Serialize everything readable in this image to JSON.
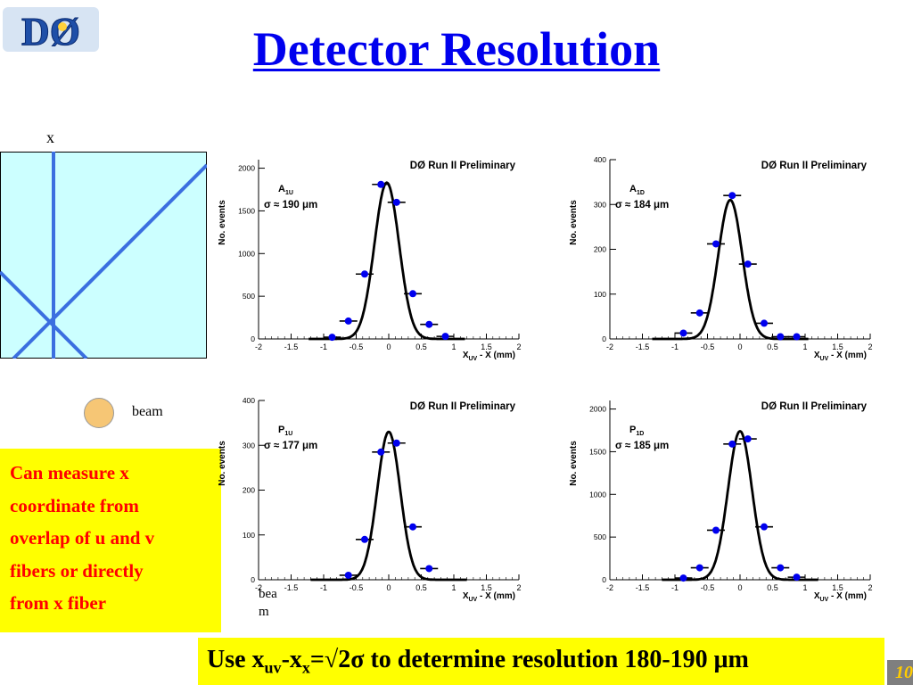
{
  "logo": {
    "text": "DØ"
  },
  "title": "Detector Resolution",
  "diagram": {
    "axis_label": "x",
    "beam_label": "beam"
  },
  "note": {
    "lines": [
      "Can  measure x",
      "coordinate from",
      "overlap of u and v",
      "fibers or directly",
      "from x fiber"
    ]
  },
  "fragment": {
    "lines": [
      "bea",
      "m"
    ]
  },
  "bottom": {
    "pre": "Use x",
    "sub1": "uv",
    "mid": "-x",
    "sub2": "x",
    "post": "=√2σ to determine resolution 180-190 μm"
  },
  "slide_number": "10",
  "chart_data": [
    {
      "type": "scatter",
      "title": "DØ Run II Preliminary",
      "label": "A",
      "label_sub": "1U",
      "sigma": "σ ≈ 190 μm",
      "xlabel": "X",
      "xlabel_sub": "UV",
      "xlabel_rest": " - X (mm)",
      "ylabel": "No. events",
      "xlim": [
        -2,
        2
      ],
      "ylim": [
        0,
        2100
      ],
      "xticks": [
        "-2",
        "-1.5",
        "-1",
        "-0.5",
        "0",
        "0.5",
        "1",
        "1.5",
        "2"
      ],
      "yticks": [
        0,
        500,
        1000,
        1500,
        2000
      ],
      "points": [
        [
          -0.87,
          20
        ],
        [
          -0.62,
          210
        ],
        [
          -0.37,
          760
        ],
        [
          -0.12,
          1810
        ],
        [
          0.12,
          1600
        ],
        [
          0.37,
          530
        ],
        [
          0.62,
          170
        ],
        [
          0.87,
          30
        ]
      ],
      "fit": {
        "amplitude": 1830,
        "mean": -0.03,
        "sigma": 0.19
      }
    },
    {
      "type": "scatter",
      "title": "DØ Run II Preliminary",
      "label": "A",
      "label_sub": "1D",
      "sigma": "σ ≈ 184 μm",
      "xlabel": "X",
      "xlabel_sub": "UV",
      "xlabel_rest": " - X (mm)",
      "ylabel": "No. events",
      "xlim": [
        -2,
        2
      ],
      "ylim": [
        0,
        400
      ],
      "xticks": [
        "-2",
        "-1.5",
        "-1",
        "-0.5",
        "0",
        "0.5",
        "1",
        "1.5",
        "2"
      ],
      "yticks": [
        0,
        100,
        200,
        300,
        400
      ],
      "points": [
        [
          -0.87,
          13
        ],
        [
          -0.62,
          58
        ],
        [
          -0.37,
          212
        ],
        [
          -0.12,
          320
        ],
        [
          0.12,
          167
        ],
        [
          0.37,
          35
        ],
        [
          0.62,
          5
        ],
        [
          0.87,
          5
        ]
      ],
      "fit": {
        "amplitude": 310,
        "mean": -0.15,
        "sigma": 0.184
      }
    },
    {
      "type": "scatter",
      "title": "DØ Run II Preliminary",
      "label": "P",
      "label_sub": "1U",
      "sigma": "σ ≈ 177 μm",
      "xlabel": "X",
      "xlabel_sub": "UV",
      "xlabel_rest": " - X (mm)",
      "ylabel": "No. events",
      "xlim": [
        -2,
        2
      ],
      "ylim": [
        0,
        400
      ],
      "xticks": [
        "-2",
        "-1.5",
        "-1",
        "-0.5",
        "0",
        "0.5",
        "1",
        "1.5",
        "2"
      ],
      "yticks": [
        0,
        100,
        200,
        300,
        400
      ],
      "points": [
        [
          -0.62,
          10
        ],
        [
          -0.37,
          90
        ],
        [
          -0.12,
          285
        ],
        [
          0.12,
          305
        ],
        [
          0.37,
          118
        ],
        [
          0.62,
          25
        ]
      ],
      "fit": {
        "amplitude": 330,
        "mean": 0.0,
        "sigma": 0.177
      }
    },
    {
      "type": "scatter",
      "title": "DØ Run II Preliminary",
      "label": "P",
      "label_sub": "1D",
      "sigma": "σ ≈ 185 μm",
      "xlabel": "X",
      "xlabel_sub": "UV",
      "xlabel_rest": " - X (mm)",
      "ylabel": "No. events",
      "xlim": [
        -2,
        2
      ],
      "ylim": [
        0,
        2100
      ],
      "xticks": [
        "-2",
        "-1.5",
        "-1",
        "-0.5",
        "0",
        "0.5",
        "1",
        "1.5",
        "2"
      ],
      "yticks": [
        0,
        500,
        1000,
        1500,
        2000
      ],
      "points": [
        [
          -0.87,
          20
        ],
        [
          -0.62,
          140
        ],
        [
          -0.37,
          580
        ],
        [
          -0.12,
          1590
        ],
        [
          0.12,
          1650
        ],
        [
          0.37,
          620
        ],
        [
          0.62,
          140
        ],
        [
          0.87,
          30
        ]
      ],
      "fit": {
        "amplitude": 1740,
        "mean": 0.0,
        "sigma": 0.185
      }
    }
  ]
}
